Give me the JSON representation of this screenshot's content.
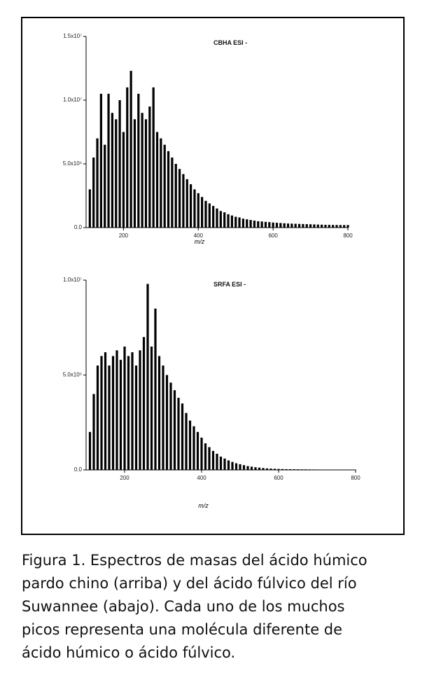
{
  "chart_data": [
    {
      "type": "bar",
      "title": "CBHA ESI -",
      "x_label": "m/z",
      "x": [
        110,
        120,
        130,
        140,
        150,
        160,
        170,
        180,
        190,
        200,
        210,
        220,
        230,
        240,
        250,
        260,
        270,
        280,
        290,
        300,
        310,
        320,
        330,
        340,
        350,
        360,
        370,
        380,
        390,
        400,
        410,
        420,
        430,
        440,
        450,
        460,
        470,
        480,
        490,
        500,
        510,
        520,
        530,
        540,
        550,
        560,
        570,
        580,
        590,
        600,
        610,
        620,
        630,
        640,
        650,
        660,
        670,
        680,
        690,
        700,
        710,
        720,
        730,
        740,
        750,
        760,
        770,
        780,
        790,
        800
      ],
      "values": [
        3000000,
        5500000,
        7000000,
        10500000,
        6500000,
        10500000,
        9000000,
        8500000,
        10000000,
        7500000,
        11000000,
        12300000,
        8500000,
        10500000,
        9000000,
        8500000,
        9500000,
        11000000,
        7500000,
        7000000,
        6500000,
        6000000,
        5500000,
        5000000,
        4600000,
        4200000,
        3800000,
        3400000,
        3000000,
        2700000,
        2400000,
        2100000,
        1900000,
        1700000,
        1500000,
        1300000,
        1200000,
        1050000,
        950000,
        850000,
        800000,
        700000,
        650000,
        600000,
        550000,
        500000,
        480000,
        450000,
        430000,
        400000,
        380000,
        360000,
        340000,
        320000,
        310000,
        300000,
        290000,
        280000,
        270000,
        260000,
        250000,
        240000,
        230000,
        220000,
        215000,
        210000,
        205000,
        200000,
        200000,
        200000
      ],
      "color": "#000000",
      "xlim": [
        100,
        800
      ],
      "xticks": [
        200,
        400,
        600,
        800
      ],
      "ylim": [
        0,
        15000000
      ],
      "yticks": [
        {
          "value": 0,
          "label": "0.0"
        },
        {
          "value": 5000000,
          "label": "5.0x10⁶"
        },
        {
          "value": 10000000,
          "label": "1.0x10⁷"
        },
        {
          "value": 15000000,
          "label": "1.5x10⁷"
        }
      ]
    },
    {
      "type": "bar",
      "title": "SRFA ESI -",
      "x_label": "m/z",
      "x": [
        110,
        120,
        130,
        140,
        150,
        160,
        170,
        180,
        190,
        200,
        210,
        220,
        230,
        240,
        250,
        260,
        270,
        280,
        290,
        300,
        310,
        320,
        330,
        340,
        350,
        360,
        370,
        380,
        390,
        400,
        410,
        420,
        430,
        440,
        450,
        460,
        470,
        480,
        490,
        500,
        510,
        520,
        530,
        540,
        550,
        560,
        570,
        580,
        590,
        600,
        610,
        620,
        630,
        640,
        650,
        660,
        670,
        680,
        690,
        700,
        710,
        720,
        730,
        740,
        750,
        760,
        770,
        780,
        790,
        800
      ],
      "values": [
        2000000,
        4000000,
        5500000,
        6000000,
        6200000,
        5500000,
        6000000,
        6300000,
        5800000,
        6500000,
        6000000,
        6200000,
        5500000,
        6300000,
        7000000,
        9800000,
        6500000,
        8500000,
        6000000,
        5500000,
        5000000,
        4600000,
        4200000,
        3800000,
        3500000,
        3000000,
        2600000,
        2300000,
        2000000,
        1700000,
        1400000,
        1200000,
        1000000,
        850000,
        700000,
        600000,
        500000,
        420000,
        350000,
        300000,
        250000,
        200000,
        170000,
        140000,
        120000,
        100000,
        80000,
        70000,
        60000,
        50000,
        45000,
        40000,
        38000,
        35000,
        32000,
        30000,
        28000,
        25000,
        22000,
        20000,
        18000,
        16000,
        15000,
        14000,
        13000,
        12000,
        11000,
        10000,
        10000,
        10000
      ],
      "color": "#000000",
      "xlim": [
        100,
        800
      ],
      "xticks": [
        200,
        400,
        600,
        800
      ],
      "ylim": [
        0,
        10000000
      ],
      "yticks": [
        {
          "value": 0,
          "label": "0.0"
        },
        {
          "value": 5000000,
          "label": "5.0x10⁶"
        },
        {
          "value": 10000000,
          "label": "1.0x10⁷"
        }
      ]
    }
  ],
  "caption": [
    "Figura 1. Espectros de masas del ácido húmico",
    "pardo chino (arriba) y del ácido fúlvico del río",
    "Suwannee (abajo). Cada uno de los muchos",
    "picos representa una molécula diferente de",
    "ácido húmico o ácido fúlvico."
  ]
}
